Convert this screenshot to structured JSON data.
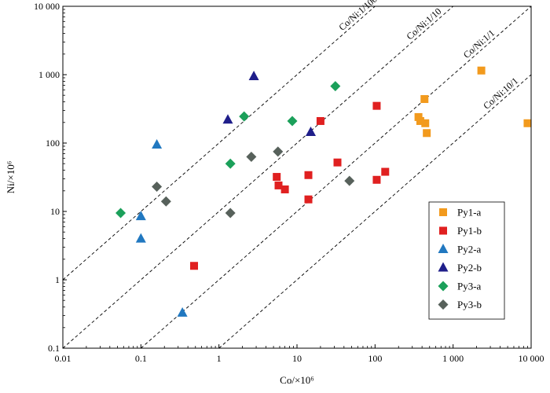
{
  "chart_data": {
    "type": "scatter",
    "title": "",
    "xlabel": "Co/×10⁶",
    "ylabel": "Ni/×10⁶",
    "xscale": "log",
    "yscale": "log",
    "xlim": [
      0.01,
      10000
    ],
    "ylim": [
      0.1,
      10000
    ],
    "xticks": [
      0.01,
      0.1,
      1,
      10,
      100,
      1000,
      10000
    ],
    "xtick_labels": [
      "0.01",
      "0.1",
      "1",
      "10",
      "100",
      "1 000",
      "10 000"
    ],
    "yticks": [
      0.1,
      1,
      10,
      100,
      1000,
      10000
    ],
    "ytick_labels": [
      "0.1",
      "1",
      "10",
      "100",
      "1 000",
      "10 000"
    ],
    "grid": false,
    "legend_position": "bottom-right",
    "reference_lines": [
      {
        "label": "Co/Ni:1/100",
        "ratio": 100
      },
      {
        "label": "Co/Ni:1/10",
        "ratio": 10
      },
      {
        "label": "Co/Ni:1/1",
        "ratio": 1
      },
      {
        "label": "Co/Ni:10/1",
        "ratio": 0.1
      }
    ],
    "series": [
      {
        "name": "Py1-a",
        "marker": "square",
        "color": "#F29A1D",
        "points": [
          [
            2300,
            1150
          ],
          [
            9000,
            195
          ],
          [
            430,
            440
          ],
          [
            360,
            240
          ],
          [
            380,
            210
          ],
          [
            440,
            195
          ],
          [
            460,
            140
          ]
        ]
      },
      {
        "name": "Py1-b",
        "marker": "square",
        "color": "#E02020",
        "points": [
          [
            0.48,
            1.6
          ],
          [
            5.5,
            32
          ],
          [
            5.8,
            24
          ],
          [
            7,
            21
          ],
          [
            14,
            34
          ],
          [
            14,
            15
          ],
          [
            20,
            210
          ],
          [
            33,
            52
          ],
          [
            105,
            350
          ],
          [
            105,
            29
          ],
          [
            135,
            38
          ]
        ]
      },
      {
        "name": "Py2-a",
        "marker": "triangle",
        "color": "#2178C0",
        "points": [
          [
            0.16,
            95
          ],
          [
            0.1,
            8.5
          ],
          [
            0.1,
            4
          ],
          [
            0.34,
            0.33
          ]
        ]
      },
      {
        "name": "Py2-b",
        "marker": "triangle",
        "color": "#1F1E8A",
        "points": [
          [
            2.8,
            950
          ],
          [
            1.3,
            220
          ],
          [
            15,
            145
          ]
        ]
      },
      {
        "name": "Py3-a",
        "marker": "diamond",
        "color": "#1BA05A",
        "points": [
          [
            0.055,
            9.5
          ],
          [
            1.4,
            50
          ],
          [
            2.1,
            245
          ],
          [
            8.7,
            210
          ],
          [
            31,
            680
          ]
        ]
      },
      {
        "name": "Py3-b",
        "marker": "diamond",
        "color": "#57615B",
        "points": [
          [
            0.16,
            23
          ],
          [
            0.21,
            14
          ],
          [
            1.4,
            9.5
          ],
          [
            2.6,
            63
          ],
          [
            5.7,
            75
          ],
          [
            47,
            28
          ]
        ]
      }
    ]
  }
}
